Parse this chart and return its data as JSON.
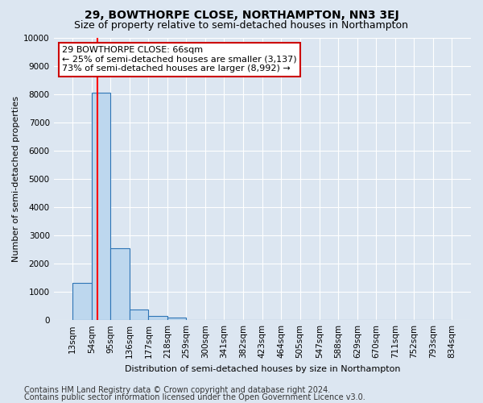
{
  "title1": "29, BOWTHORPE CLOSE, NORTHAMPTON, NN3 3EJ",
  "title2": "Size of property relative to semi-detached houses in Northampton",
  "xlabel": "Distribution of semi-detached houses by size in Northampton",
  "ylabel": "Number of semi-detached properties",
  "footer1": "Contains HM Land Registry data © Crown copyright and database right 2024.",
  "footer2": "Contains public sector information licensed under the Open Government Licence v3.0.",
  "property_label": "29 BOWTHORPE CLOSE: 66sqm",
  "annotation_line1": "← 25% of semi-detached houses are smaller (3,137)",
  "annotation_line2": "73% of semi-detached houses are larger (8,992) →",
  "bar_edges": [
    13,
    54,
    95,
    136,
    177,
    218,
    259,
    300,
    341,
    382,
    423,
    464,
    505,
    547,
    588,
    629,
    670,
    711,
    752,
    793,
    834
  ],
  "bar_values": [
    1320,
    8050,
    2530,
    380,
    150,
    100,
    0,
    0,
    0,
    0,
    0,
    0,
    0,
    0,
    0,
    0,
    0,
    0,
    0,
    0
  ],
  "bar_color": "#bdd7ee",
  "bar_edge_color": "#2e75b6",
  "red_line_x": 66,
  "ylim": [
    0,
    10000
  ],
  "yticks": [
    0,
    1000,
    2000,
    3000,
    4000,
    5000,
    6000,
    7000,
    8000,
    9000,
    10000
  ],
  "bg_color": "#dce6f1",
  "grid_color": "#ffffff",
  "annotation_box_facecolor": "#ffffff",
  "annotation_box_edgecolor": "#cc0000",
  "title1_fontsize": 10,
  "title2_fontsize": 9,
  "axis_fontsize": 8,
  "ylabel_fontsize": 8,
  "tick_fontsize": 7.5,
  "annotation_fontsize": 8,
  "footer_fontsize": 7
}
